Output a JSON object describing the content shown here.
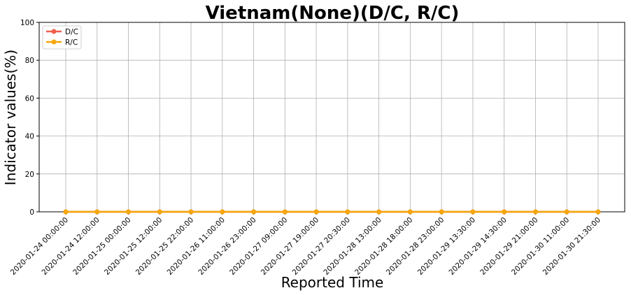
{
  "chart_data": {
    "type": "line",
    "title": "Vietnam(None)(D/C, R/C)",
    "xlabel": "Reported Time",
    "ylabel": "Indicator values(%)",
    "ylim": [
      0,
      100
    ],
    "yticks": [
      0,
      20,
      40,
      60,
      80,
      100
    ],
    "grid": true,
    "legend_position": "top-left",
    "categories": [
      "2020-01-24 00:00:00",
      "2020-01-24 12:00:00",
      "2020-01-25 00:00:00",
      "2020-01-25 12:00:00",
      "2020-01-25 22:00:00",
      "2020-01-26 11:00:00",
      "2020-01-26 23:00:00",
      "2020-01-27 09:00:00",
      "2020-01-27 19:00:00",
      "2020-01-27 20:30:00",
      "2020-01-28 13:00:00",
      "2020-01-28 18:00:00",
      "2020-01-28 23:00:00",
      "2020-01-29 13:30:00",
      "2020-01-29 14:30:00",
      "2020-01-29 21:00:00",
      "2020-01-30 11:00:00",
      "2020-01-30 21:30:00"
    ],
    "series": [
      {
        "name": "D/C",
        "color": "#f0604d",
        "values": [
          0,
          0,
          0,
          0,
          0,
          0,
          0,
          0,
          0,
          0,
          0,
          0,
          0,
          0,
          0,
          0,
          0,
          0
        ]
      },
      {
        "name": "R/C",
        "color": "#f5a70c",
        "values": [
          0,
          0,
          0,
          0,
          0,
          0,
          0,
          0,
          0,
          0,
          0,
          0,
          0,
          0,
          0,
          0,
          0,
          0
        ]
      }
    ]
  }
}
